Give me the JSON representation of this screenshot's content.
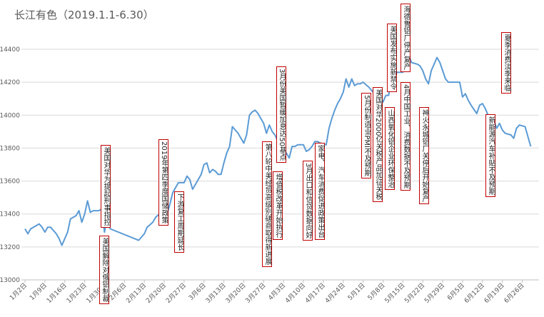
{
  "chart_data": {
    "type": "line",
    "title": "长江有色（2019.1.1-6.30）",
    "x": [
      "1月2日",
      "1月3日",
      "1月4日",
      "1月7日",
      "1月8日",
      "1月9日",
      "1月10日",
      "1月11日",
      "1月13日",
      "1月14日",
      "1月15日",
      "1月17日",
      "1月18日",
      "1月20日",
      "1月21日",
      "1月22日",
      "1月23日",
      "1月24日",
      "1月25日",
      "1月26日",
      "1月28日",
      "1月29日",
      "1月30日",
      "1月31日",
      "2月1日",
      "2月11日",
      "2月13日",
      "2月14日",
      "2月16日",
      "2月17日",
      "2月19日",
      "2月20日",
      "2月21日",
      "2月22日",
      "2月23日",
      "2月24日",
      "2月25日",
      "2月27日",
      "2月28日",
      "3月1日",
      "3月2日",
      "3月3日",
      "3月4日",
      "3月5日",
      "3月6日",
      "3月7日",
      "3月8日",
      "3月9日",
      "3月10日",
      "3月11日",
      "3月12日",
      "3月13日",
      "3月14日",
      "3月15日",
      "3月16日",
      "3月17日",
      "3月18日",
      "3月20日",
      "3月21日",
      "3月22日",
      "3月23日",
      "3月24日",
      "3月25日",
      "3月26日",
      "3月27日",
      "3月28日",
      "3月29日",
      "3月30日",
      "3月31日",
      "4月1日",
      "4月2日",
      "4月3日",
      "4月4日",
      "4月5日",
      "4月6日",
      "4月7日",
      "4月8日",
      "4月10日",
      "4月11日",
      "4月12日",
      "4月13日",
      "4月14日",
      "4月15日",
      "4月16日",
      "4月18日",
      "4月19日",
      "4月20日",
      "4月21日",
      "4月22日",
      "4月23日",
      "4月24日",
      "4月25日",
      "4月26日",
      "4月27日",
      "4月28日",
      "4月29日",
      "4月30日",
      "5月1日",
      "5月3日",
      "5月4日",
      "5月5日",
      "5月7日",
      "5月8日",
      "5月9日",
      "5月10日",
      "5月11日",
      "5月12日",
      "5月13日",
      "5月15日",
      "5月16日",
      "5月17日",
      "5月18日",
      "5月20日",
      "5月21日",
      "5月22日",
      "5月23日",
      "5月24日",
      "5月25日",
      "5月26日",
      "5月27日",
      "5月28日",
      "5月29日",
      "5月30日",
      "5月31日",
      "6月2日",
      "6月4日",
      "6月5日",
      "6月6日",
      "6月7日",
      "6月8日",
      "6月10日",
      "6月11日",
      "6月12日",
      "6月13日",
      "6月14日",
      "6月16日",
      "6月17日",
      "6月18日",
      "6月19日",
      "6月20日",
      "6月22日",
      "6月23日",
      "6月24日",
      "6月25日",
      "6月27日",
      "6月29日"
    ],
    "series": [
      {
        "color": "#5b9bd5",
        "values": [
          13310,
          13280,
          13310,
          13340,
          13320,
          13290,
          13320,
          13320,
          13280,
          13250,
          13210,
          13290,
          13370,
          13390,
          13420,
          13350,
          13400,
          13480,
          13410,
          13420,
          13420,
          13430,
          13290,
          13400,
          13310,
          13240,
          13280,
          13320,
          13350,
          13380,
          13410,
          13360,
          13400,
          13460,
          13530,
          13560,
          13590,
          13590,
          13630,
          13610,
          13550,
          13580,
          13610,
          13640,
          13700,
          13710,
          13650,
          13670,
          13660,
          13640,
          13640,
          13710,
          13770,
          13810,
          13930,
          13910,
          13890,
          13830,
          13880,
          14000,
          14020,
          14030,
          14010,
          13980,
          13950,
          13890,
          13940,
          13900,
          13880,
          13840,
          13770,
          13740,
          13770,
          13740,
          13810,
          13810,
          13820,
          13820,
          13780,
          13790,
          13810,
          13840,
          13840,
          13830,
          13820,
          13920,
          13980,
          14030,
          14070,
          14100,
          14140,
          14220,
          14170,
          14220,
          14180,
          14190,
          14190,
          14200,
          14170,
          14150,
          14130,
          14110,
          14080,
          14120,
          14120,
          14230,
          14240,
          14260,
          14260,
          14350,
          14370,
          14320,
          14310,
          14300,
          14270,
          14220,
          14190,
          14270,
          14310,
          14350,
          14320,
          14270,
          14220,
          14200,
          14200,
          14200,
          14110,
          14130,
          14090,
          14060,
          14010,
          14060,
          14070,
          14040,
          14000,
          13970,
          13920,
          13950,
          13910,
          13890,
          13880,
          13860,
          13920,
          13940,
          13930,
          13810
        ]
      }
    ],
    "xticks": [
      "1月2日",
      "1月9日",
      "1月16日",
      "1月23日",
      "1月30日",
      "2月6日",
      "2月13日",
      "2月20日",
      "2月27日",
      "3月6日",
      "3月13日",
      "3月20日",
      "3月27日",
      "4月3日",
      "4月10日",
      "4月17日",
      "4月24日",
      "5月1日",
      "5月8日",
      "5月15日",
      "5月22日",
      "5月29日",
      "6月5日",
      "6月12日",
      "6月19日",
      "6月26日"
    ],
    "ylim": [
      13000,
      14400
    ],
    "yticks": [
      13000,
      13200,
      13400,
      13600,
      13800,
      14000,
      14200,
      14400
    ],
    "grid": true,
    "annotations": [
      "美国对华为提起刑事指控",
      "美国解除对俄铝制裁",
      "2019年第四季度国储政策",
      "下游复工周期延长",
      "3月份美国暂缓加息达50基点",
      "第八轮中美经贸高级别磋商取得新进展",
      "增值税改革开始执行",
      "3月出口和信贷数据向好",
      "家电、汽车消费促进政策出台",
      "5月份制造业PMI不及预期",
      "美国对华2000亿关税产品加征关税",
      "山西氧化铝企业环保整治",
      "美国发布实施新禁令",
      "海德鲁铝厂停产复产",
      "4月中国工业、消费数据不及预期",
      "神火永城铝厂关停后开始复产",
      "夏季消费淡季来临",
      "新能源汽车补贴不及预期"
    ]
  }
}
